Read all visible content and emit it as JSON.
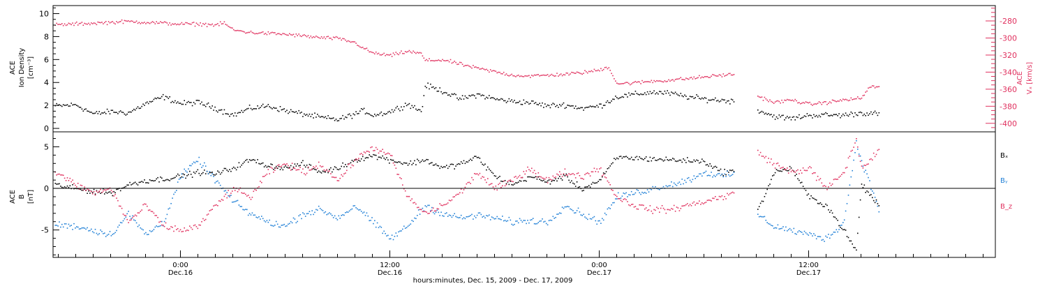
{
  "colors": {
    "axis": "#000000",
    "density": "#000000",
    "vx": "#e0305e",
    "bx": "#000000",
    "by": "#1f7fd6",
    "bz": "#e0305e"
  },
  "figure": {
    "x_title": "hours:minutes, Dec. 15, 2009 - Dec. 17, 2009",
    "time_ticks": [
      {
        "h": 0,
        "time": "0:00",
        "date": "Dec.16"
      },
      {
        "h": 12,
        "time": "12:00",
        "date": "Dec.16"
      },
      {
        "h": 24,
        "time": "0:00",
        "date": "Dec.17"
      },
      {
        "h": 36,
        "time": "12:00",
        "date": "Dec.17"
      }
    ]
  },
  "chart_data": [
    {
      "type": "scatter",
      "panel": "top",
      "xlim_hours": [
        -7.3,
        46.7
      ],
      "left_axis": {
        "label_lines": [
          "ACE",
          "Ion Density",
          "[cm⁻³]"
        ],
        "ylim": [
          -0.3,
          10.7
        ],
        "ticks": [
          0,
          2,
          4,
          6,
          8,
          10
        ]
      },
      "right_axis": {
        "label_lines": [
          "ACE",
          "Vₓ [km/s]"
        ],
        "ylim": [
          -410,
          -262
        ],
        "ticks": [
          -280,
          -300,
          -320,
          -340,
          -360,
          -380,
          -400
        ]
      },
      "series": [
        {
          "key": "density",
          "axis": "left",
          "color_key": "density",
          "noise": 0.35,
          "x": [
            -7.2,
            -6.0,
            -5.0,
            -4.0,
            -3.0,
            -2.0,
            -1.0,
            0.0,
            1.0,
            2.0,
            3.0,
            4.0,
            5.0,
            6.0,
            7.0,
            8.0,
            9.0,
            10.0,
            10.5,
            11.0,
            12.0,
            13.0,
            13.8,
            14.0,
            15.0,
            16.0,
            17.0,
            18.0,
            19.0,
            20.0,
            21.0,
            22.0,
            23.0,
            24.0,
            25.0,
            26.0,
            27.0,
            28.0,
            29.0,
            30.0,
            31.0,
            31.7,
            32.5,
            33.0,
            34.0,
            35.0,
            36.0,
            37.0,
            38.0,
            39.0,
            40.0
          ],
          "y": [
            2.0,
            2.1,
            1.3,
            1.5,
            1.4,
            2.2,
            2.8,
            2.2,
            2.3,
            1.8,
            1.2,
            1.8,
            2.0,
            1.6,
            1.3,
            1.0,
            0.8,
            1.3,
            1.6,
            1.2,
            1.5,
            2.2,
            1.5,
            3.8,
            3.3,
            2.6,
            3.0,
            2.6,
            2.4,
            2.3,
            2.0,
            2.1,
            1.8,
            2.0,
            2.8,
            3.0,
            3.2,
            3.1,
            2.8,
            2.6,
            2.5,
            2.4,
            null,
            1.7,
            1.1,
            0.9,
            1.2,
            1.2,
            1.2,
            1.4,
            1.3
          ]
        },
        {
          "key": "vx",
          "axis": "right",
          "color_key": "vx",
          "noise": 3,
          "x": [
            -7.2,
            -6.0,
            -5.0,
            -4.0,
            -3.0,
            -2.0,
            -1.0,
            0.0,
            1.0,
            2.0,
            2.5,
            3.0,
            4.0,
            5.0,
            6.0,
            7.0,
            8.0,
            9.0,
            10.0,
            10.5,
            11.0,
            12.0,
            13.0,
            13.8,
            14.0,
            15.0,
            16.0,
            17.0,
            18.0,
            19.0,
            20.0,
            21.0,
            22.0,
            23.0,
            24.0,
            24.5,
            25.0,
            26.0,
            27.0,
            28.0,
            29.0,
            30.0,
            31.0,
            31.7,
            32.5,
            33.0,
            34.0,
            35.0,
            36.0,
            37.0,
            38.0,
            39.0,
            39.5,
            40.0
          ],
          "y": [
            -284,
            -283,
            -282,
            -281,
            -280,
            -281,
            -282,
            -283,
            -283,
            -284,
            -282,
            -290,
            -293,
            -294,
            -295,
            -297,
            -299,
            -300,
            -305,
            -312,
            -317,
            -320,
            -315,
            -318,
            -326,
            -325,
            -330,
            -335,
            -339,
            -343,
            -344,
            -343,
            -342,
            -340,
            -337,
            -333,
            -353,
            -352,
            -350,
            -349,
            -347,
            -345,
            -343,
            -342,
            null,
            -367,
            -375,
            -372,
            -377,
            -375,
            -372,
            -370,
            -356,
            -357
          ]
        }
      ]
    },
    {
      "type": "scatter",
      "panel": "bottom",
      "xlim_hours": [
        -7.3,
        46.7
      ],
      "left_axis": {
        "label_lines": [
          "ACE",
          "B",
          "[nT]"
        ],
        "ylim": [
          -8.3,
          6.8
        ],
        "ticks": [
          -5,
          0,
          5
        ]
      },
      "legend": [
        "Bₓ",
        "Bᵧ",
        "B_z"
      ],
      "legend_colors": [
        "bx",
        "by",
        "bz"
      ],
      "series": [
        {
          "key": "Bx",
          "color_key": "bx",
          "noise": 0.5,
          "x": [
            -7.2,
            -6.0,
            -5.0,
            -4.0,
            -3.0,
            -2.0,
            -1.0,
            0.0,
            1.0,
            2.0,
            3.0,
            4.0,
            5.0,
            6.0,
            7.0,
            8.0,
            9.0,
            10.0,
            11.0,
            12.0,
            13.0,
            14.0,
            15.0,
            16.0,
            17.0,
            18.0,
            19.0,
            20.0,
            21.0,
            22.0,
            23.0,
            24.0,
            25.0,
            26.0,
            27.0,
            28.0,
            29.0,
            30.0,
            31.0,
            31.7,
            32.5,
            33.0,
            34.0,
            35.0,
            36.0,
            37.0,
            38.0,
            38.7,
            39.0,
            40.0
          ],
          "y": [
            0.5,
            0.0,
            -0.3,
            -0.5,
            0.5,
            1.0,
            1.2,
            1.5,
            2.0,
            1.8,
            2.5,
            3.5,
            2.8,
            2.5,
            3.0,
            2.0,
            2.5,
            3.5,
            4.0,
            3.5,
            3.0,
            3.5,
            2.5,
            3.0,
            3.8,
            1.5,
            0.5,
            1.5,
            0.8,
            1.5,
            0.0,
            1.0,
            3.8,
            3.7,
            3.6,
            3.5,
            3.4,
            3.3,
            2.0,
            2.2,
            null,
            -3.0,
            2.0,
            2.5,
            -1.0,
            -2.0,
            -5.0,
            -7.5,
            0.5,
            -2.0
          ]
        },
        {
          "key": "By",
          "color_key": "by",
          "noise": 0.6,
          "x": [
            -7.2,
            -6.0,
            -5.0,
            -4.0,
            -3.0,
            -2.0,
            -1.0,
            0.0,
            1.0,
            2.0,
            3.0,
            4.0,
            5.0,
            6.0,
            7.0,
            8.0,
            9.0,
            10.0,
            11.0,
            12.0,
            13.0,
            14.0,
            15.0,
            16.0,
            17.0,
            18.0,
            19.0,
            20.0,
            21.0,
            22.0,
            23.0,
            24.0,
            25.0,
            26.0,
            27.0,
            28.0,
            29.0,
            30.0,
            31.0,
            31.7,
            32.5,
            33.0,
            34.0,
            35.0,
            36.0,
            37.0,
            38.0,
            38.7,
            39.0,
            40.0
          ],
          "y": [
            -4.3,
            -4.5,
            -5.0,
            -5.5,
            -3.0,
            -5.5,
            -4.0,
            1.5,
            3.5,
            1.0,
            -1.5,
            -3.0,
            -4.0,
            -4.5,
            -3.0,
            -2.5,
            -3.5,
            -2.0,
            -4.0,
            -6.0,
            -4.5,
            -2.0,
            -3.0,
            -3.5,
            -3.2,
            -3.5,
            -4.0,
            -3.8,
            -4.0,
            -2.0,
            -3.0,
            -4.0,
            -1.0,
            -0.5,
            0.0,
            0.5,
            1.0,
            2.0,
            1.5,
            1.8,
            null,
            -3.0,
            -4.5,
            -5.0,
            -5.5,
            -6.0,
            -4.0,
            5.5,
            3.5,
            -2.5
          ]
        },
        {
          "key": "Bz",
          "color_key": "bz",
          "noise": 0.6,
          "x": [
            -7.2,
            -6.0,
            -5.0,
            -4.0,
            -3.0,
            -2.0,
            -1.0,
            0.0,
            1.0,
            2.0,
            3.0,
            4.0,
            5.0,
            6.0,
            7.0,
            8.0,
            9.0,
            10.0,
            11.0,
            12.0,
            13.0,
            14.0,
            15.0,
            16.0,
            17.0,
            18.0,
            19.0,
            20.0,
            21.0,
            22.0,
            23.0,
            24.0,
            25.0,
            26.0,
            27.0,
            28.0,
            29.0,
            30.0,
            31.0,
            31.7,
            32.5,
            33.0,
            34.0,
            35.0,
            36.0,
            37.0,
            38.0,
            38.7,
            39.0,
            40.0
          ],
          "y": [
            2.0,
            0.5,
            -0.5,
            0.0,
            -4.0,
            -2.0,
            -4.5,
            -5.0,
            -4.5,
            -2.0,
            0.0,
            -1.0,
            2.0,
            3.0,
            2.0,
            3.0,
            1.0,
            3.5,
            5.0,
            4.0,
            -1.0,
            -3.0,
            -2.0,
            -0.5,
            2.0,
            0.0,
            1.0,
            2.5,
            1.0,
            2.0,
            1.5,
            2.5,
            -1.0,
            -2.0,
            -2.5,
            -2.5,
            -2.0,
            -1.5,
            -1.0,
            -0.5,
            null,
            4.5,
            3.0,
            2.0,
            2.5,
            0.0,
            2.0,
            6.0,
            2.5,
            4.5
          ]
        }
      ]
    }
  ]
}
